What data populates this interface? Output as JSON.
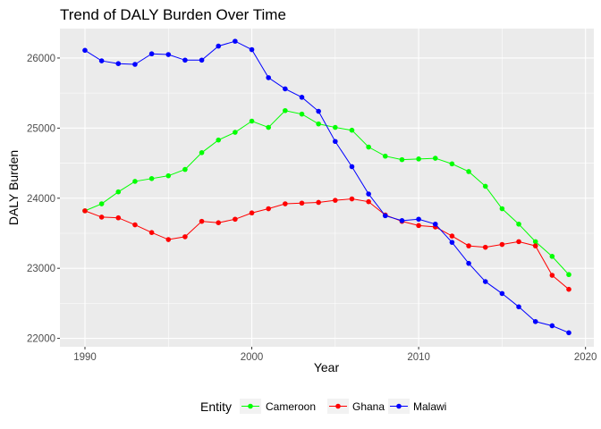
{
  "chart_data": {
    "type": "line",
    "title": "Trend of DALY Burden Over Time",
    "xlabel": "Year",
    "ylabel": "DALY Burden",
    "xlim": [
      1988.5,
      2020.5
    ],
    "ylim": [
      21880,
      26420
    ],
    "x_ticks": [
      1990,
      2000,
      2010,
      2020
    ],
    "y_ticks": [
      22000,
      23000,
      24000,
      25000,
      26000
    ],
    "grid": true,
    "legend": {
      "title": "Entity",
      "position": "bottom"
    },
    "x": [
      1990,
      1991,
      1992,
      1993,
      1994,
      1995,
      1996,
      1997,
      1998,
      1999,
      2000,
      2001,
      2002,
      2003,
      2004,
      2005,
      2006,
      2007,
      2008,
      2009,
      2010,
      2011,
      2012,
      2013,
      2014,
      2015,
      2016,
      2017,
      2018,
      2019
    ],
    "series": [
      {
        "name": "Cameroon",
        "color": "#00ff00",
        "values": [
          23820,
          23920,
          24090,
          24240,
          24280,
          24320,
          24410,
          24650,
          24830,
          24940,
          25100,
          25010,
          25250,
          25200,
          25060,
          25010,
          24970,
          24730,
          24600,
          24550,
          24560,
          24570,
          24490,
          24380,
          24170,
          23850,
          23630,
          23380,
          23170,
          22910
        ]
      },
      {
        "name": "Ghana",
        "color": "#ff0000",
        "values": [
          23820,
          23730,
          23720,
          23620,
          23510,
          23410,
          23450,
          23670,
          23650,
          23700,
          23790,
          23850,
          23920,
          23930,
          23940,
          23970,
          23990,
          23950,
          23760,
          23670,
          23610,
          23590,
          23460,
          23320,
          23300,
          23340,
          23380,
          23320,
          22900,
          22700
        ]
      },
      {
        "name": "Malawi",
        "color": "#0000ff",
        "values": [
          26110,
          25960,
          25920,
          25910,
          26060,
          26050,
          25970,
          25970,
          26170,
          26240,
          26120,
          25720,
          25560,
          25440,
          25240,
          24810,
          24450,
          24060,
          23750,
          23680,
          23700,
          23630,
          23370,
          23070,
          22810,
          22640,
          22450,
          22240,
          22180,
          22080
        ]
      }
    ]
  }
}
